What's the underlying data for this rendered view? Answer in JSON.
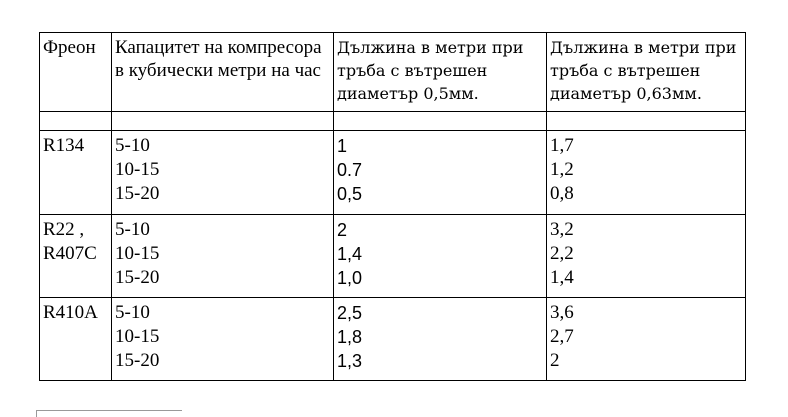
{
  "table": {
    "header": [
      "Фреон",
      "Капацитет на компресора в кубически метри на час",
      "Дължина в метри при тръба с вътрешен диаметър 0,5мм.",
      "Дължина в метри при тръба с вътрешен диаметър 0,63мм."
    ],
    "rows": [
      {
        "refrigerant": [
          "R134"
        ],
        "capacity": [
          "5-10",
          "10-15",
          "15-20"
        ],
        "length_05": [
          "1",
          "0.7",
          "0,5"
        ],
        "length_063": [
          "1,7",
          "1,2",
          "0,8"
        ]
      },
      {
        "refrigerant": [
          "R22 ,",
          "R407C"
        ],
        "capacity": [
          "5-10",
          "10-15",
          "15-20"
        ],
        "length_05": [
          "2",
          "1,4",
          "1,0"
        ],
        "length_063": [
          "3,2",
          "2,2",
          "1,4"
        ]
      },
      {
        "refrigerant": [
          "R410A"
        ],
        "capacity": [
          "5-10",
          "10-15",
          "15-20"
        ],
        "length_05": [
          "2,5",
          "1,8",
          "1,3"
        ],
        "length_063": [
          "3,6",
          "2,7",
          "2"
        ]
      }
    ]
  }
}
